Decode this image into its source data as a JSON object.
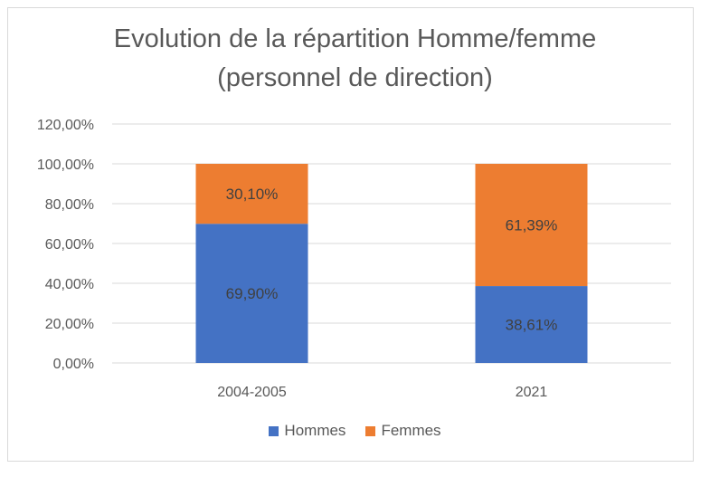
{
  "chart_data": {
    "type": "bar",
    "stacked": true,
    "title_lines": [
      "Evolution de la répartition Homme/femme",
      "(personnel de direction)"
    ],
    "categories": [
      "2004-2005",
      "2021"
    ],
    "series": [
      {
        "name": "Hommes",
        "values": [
          69.9,
          38.61
        ],
        "labels": [
          "69,90%",
          "38,61%"
        ],
        "color": "#4472C4"
      },
      {
        "name": "Femmes",
        "values": [
          30.1,
          61.39
        ],
        "labels": [
          "30,10%",
          "61,39%"
        ],
        "color": "#ED7D31"
      }
    ],
    "ylim": [
      0,
      120
    ],
    "yticks": [
      0,
      20,
      40,
      60,
      80,
      100,
      120
    ],
    "ytick_labels": [
      "0,00%",
      "20,00%",
      "40,00%",
      "60,00%",
      "80,00%",
      "100,00%",
      "120,00%"
    ],
    "grid": true,
    "legend_position": "bottom"
  }
}
